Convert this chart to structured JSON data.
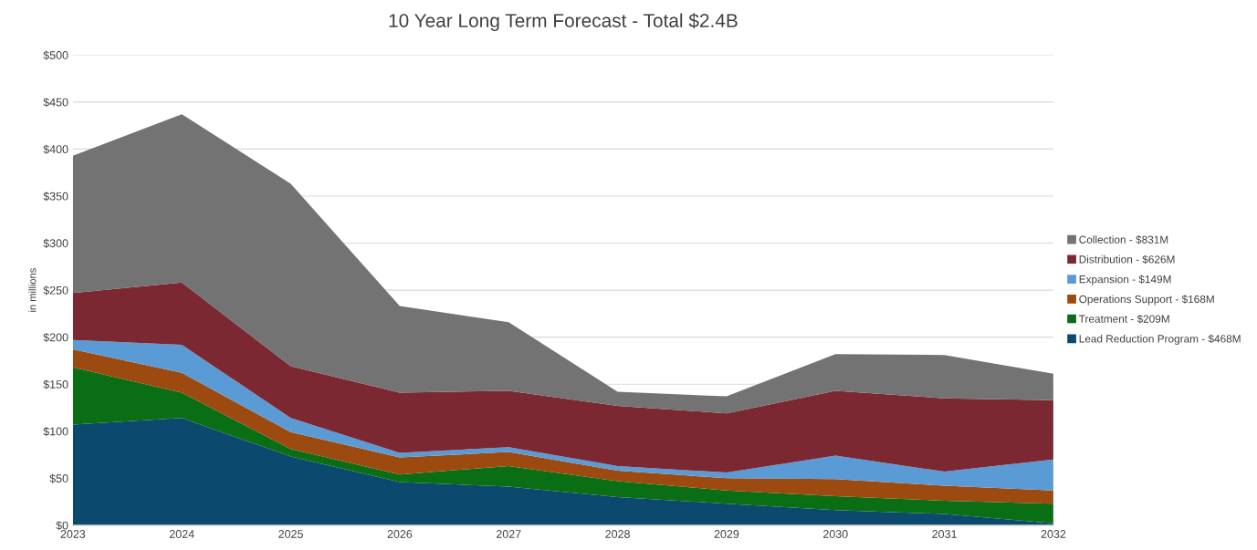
{
  "chart_data": {
    "type": "area",
    "title": "10 Year Long Term Forecast - Total $2.4B",
    "ylabel": "in millions",
    "stacked": true,
    "categories": [
      "2023",
      "2024",
      "2025",
      "2026",
      "2027",
      "2028",
      "2029",
      "2030",
      "2031",
      "2032"
    ],
    "series": [
      {
        "name": "Lead Reduction Program - $468M",
        "color": "#0b4a6e",
        "values": [
          107,
          114,
          73,
          46,
          41,
          30,
          23,
          16,
          12,
          2
        ]
      },
      {
        "name": "Treatment - $209M",
        "color": "#0a6e14",
        "values": [
          61,
          27,
          8,
          8,
          22,
          17,
          14,
          15,
          14,
          21
        ]
      },
      {
        "name": "Operations Support - $168M",
        "color": "#9c4a0f",
        "values": [
          19,
          21,
          18,
          18,
          15,
          11,
          13,
          18,
          16,
          14
        ]
      },
      {
        "name": "Expansion - $149M",
        "color": "#5b9bd5",
        "values": [
          10,
          30,
          15,
          5,
          5,
          5,
          6,
          25,
          15,
          33
        ]
      },
      {
        "name": "Distribution - $626M",
        "color": "#7b2832",
        "values": [
          50,
          66,
          55,
          64,
          60,
          64,
          63,
          69,
          78,
          63
        ]
      },
      {
        "name": "Collection - $831M",
        "color": "#737373",
        "values": [
          146,
          179,
          194,
          92,
          73,
          15,
          18,
          39,
          46,
          28
        ]
      }
    ],
    "ylim": [
      0,
      500
    ],
    "yticks": [
      {
        "value": 0,
        "label": "$0"
      },
      {
        "value": 50,
        "label": "$50"
      },
      {
        "value": 100,
        "label": "$100"
      },
      {
        "value": 150,
        "label": "$150"
      },
      {
        "value": 200,
        "label": "$200"
      },
      {
        "value": 250,
        "label": "$250"
      },
      {
        "value": 300,
        "label": "$300"
      },
      {
        "value": 350,
        "label": "$350"
      },
      {
        "value": 400,
        "label": "$400"
      },
      {
        "value": 450,
        "label": "$450"
      },
      {
        "value": 500,
        "label": "$500"
      }
    ],
    "grid": "y",
    "legend": "right"
  }
}
